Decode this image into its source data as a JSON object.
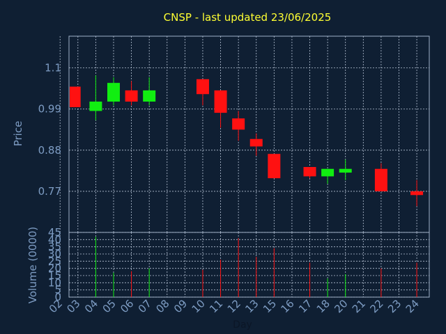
{
  "chart_data": [
    {
      "type": "candlestick",
      "title": "CNSP - last updated 23/06/2025",
      "ylabel": "Price",
      "xlabel": "Day",
      "ylim": [
        0.66,
        1.185
      ],
      "yticks": [
        {
          "value": 1.1,
          "label": "1.1"
        },
        {
          "value": 0.99,
          "label": "0.99"
        },
        {
          "value": 0.88,
          "label": "0.88"
        },
        {
          "value": 0.77,
          "label": "0.77"
        }
      ],
      "categories": [
        "02",
        "03",
        "04",
        "05",
        "06",
        "07",
        "08",
        "09",
        "10",
        "11",
        "12",
        "13",
        "15",
        "16",
        "17",
        "18",
        "20",
        "21",
        "22",
        "23",
        "24"
      ],
      "x_start": 1.5,
      "x_end": 21.7,
      "grid": true,
      "up_color": "#11ee11",
      "down_color": "#ff1111",
      "candles": [
        {
          "pos": 1.8,
          "open": 1.05,
          "close": 0.995,
          "high": 1.05,
          "low": 0.995
        },
        {
          "pos": 3.0,
          "open": 0.985,
          "close": 1.01,
          "high": 1.08,
          "low": 0.96
        },
        {
          "pos": 4.0,
          "open": 1.01,
          "close": 1.06,
          "high": 1.075,
          "low": 1.0
        },
        {
          "pos": 5.0,
          "open": 1.04,
          "close": 1.01,
          "high": 1.065,
          "low": 1.0
        },
        {
          "pos": 6.0,
          "open": 1.01,
          "close": 1.04,
          "high": 1.075,
          "low": 1.0
        },
        {
          "pos": 9.0,
          "open": 1.07,
          "close": 1.03,
          "high": 1.07,
          "low": 1.0
        },
        {
          "pos": 10.0,
          "open": 1.04,
          "close": 0.98,
          "high": 1.04,
          "low": 0.94
        },
        {
          "pos": 11.0,
          "open": 0.965,
          "close": 0.935,
          "high": 0.985,
          "low": 0.905
        },
        {
          "pos": 12.0,
          "open": 0.91,
          "close": 0.89,
          "high": 0.925,
          "low": 0.865
        },
        {
          "pos": 13.0,
          "open": 0.87,
          "close": 0.805,
          "high": 0.87,
          "low": 0.805
        },
        {
          "pos": 15.0,
          "open": 0.835,
          "close": 0.81,
          "high": 0.835,
          "low": 0.805
        },
        {
          "pos": 16.0,
          "open": 0.81,
          "close": 0.83,
          "high": 0.83,
          "low": 0.79
        },
        {
          "pos": 17.0,
          "open": 0.82,
          "close": 0.83,
          "high": 0.855,
          "low": 0.8
        },
        {
          "pos": 19.0,
          "open": 0.83,
          "close": 0.77,
          "high": 0.845,
          "low": 0.77
        },
        {
          "pos": 21.0,
          "open": 0.77,
          "close": 0.76,
          "high": 0.8,
          "low": 0.73
        }
      ]
    },
    {
      "type": "bar",
      "ylabel": "Volume (0000)",
      "ylim": [
        0,
        45
      ],
      "yticks": [
        0,
        5,
        10,
        15,
        20,
        25,
        30,
        35,
        40,
        45
      ],
      "bars": [
        {
          "pos": 3.0,
          "value": 42,
          "dir": "up"
        },
        {
          "pos": 4.0,
          "value": 17,
          "dir": "up"
        },
        {
          "pos": 5.0,
          "value": 18,
          "dir": "down"
        },
        {
          "pos": 6.0,
          "value": 20,
          "dir": "up"
        },
        {
          "pos": 9.0,
          "value": 19,
          "dir": "down"
        },
        {
          "pos": 10.0,
          "value": 26,
          "dir": "down"
        },
        {
          "pos": 11.0,
          "value": 41,
          "dir": "down"
        },
        {
          "pos": 12.0,
          "value": 28,
          "dir": "down"
        },
        {
          "pos": 13.0,
          "value": 34,
          "dir": "down"
        },
        {
          "pos": 15.0,
          "value": 24,
          "dir": "down"
        },
        {
          "pos": 16.0,
          "value": 13,
          "dir": "up"
        },
        {
          "pos": 17.0,
          "value": 16,
          "dir": "up"
        },
        {
          "pos": 19.0,
          "value": 20,
          "dir": "down"
        },
        {
          "pos": 21.0,
          "value": 24,
          "dir": "down"
        }
      ]
    }
  ]
}
